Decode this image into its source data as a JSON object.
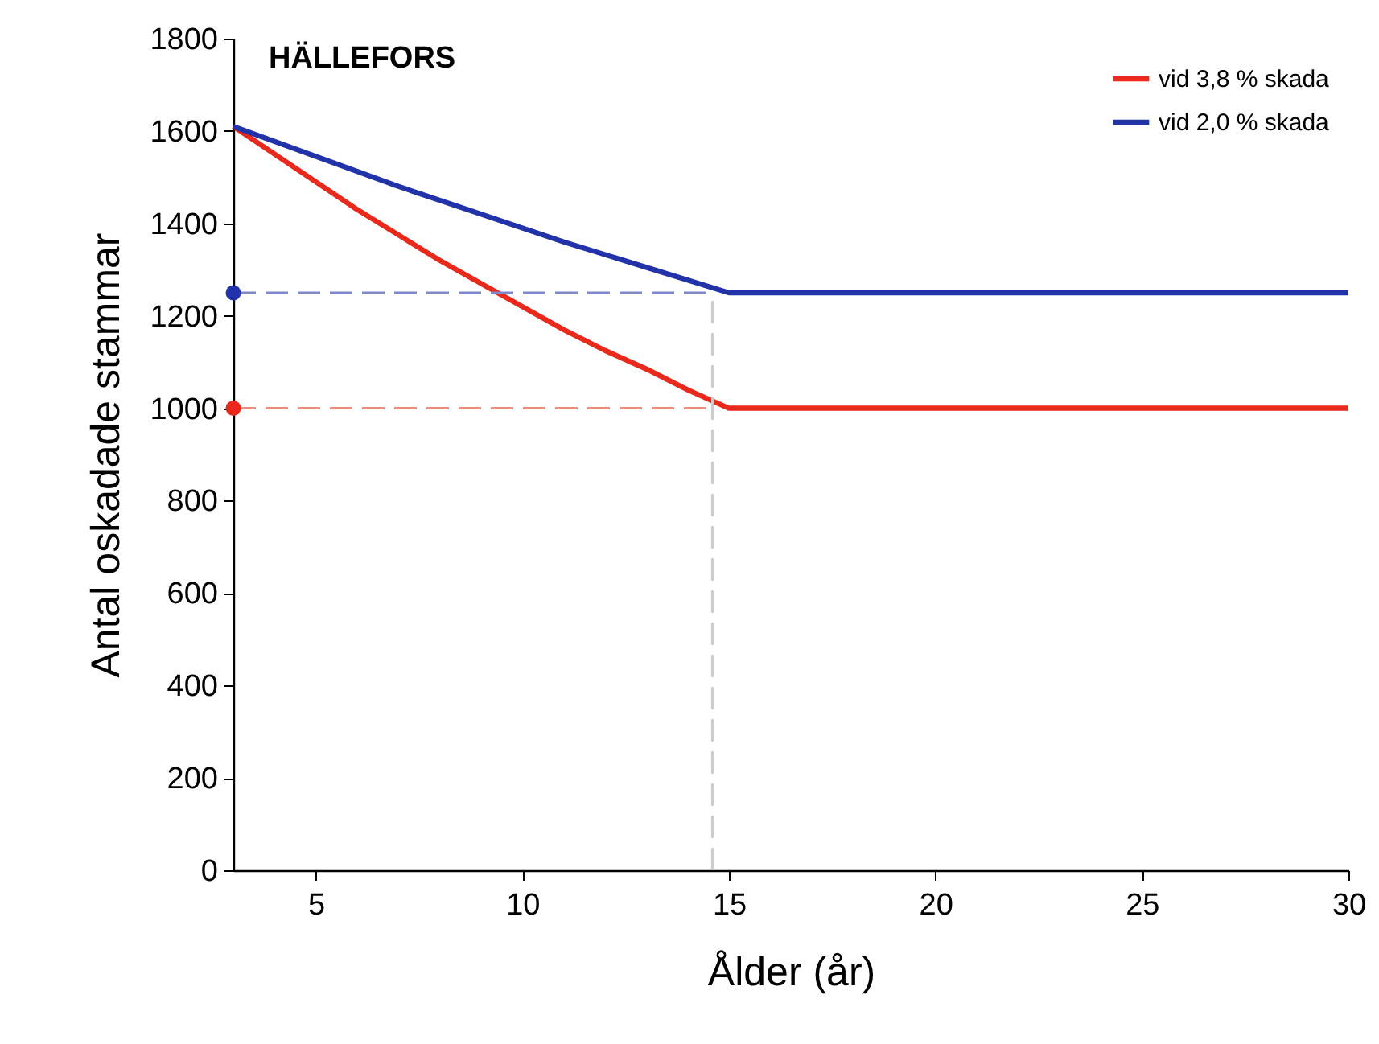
{
  "chart_data": {
    "type": "line",
    "title": "HÄLLEFORS",
    "xlabel": "Ålder (år)",
    "ylabel": "Antal oskadade stammar",
    "xlim": [
      3,
      30
    ],
    "ylim": [
      0,
      1800
    ],
    "xticks": [
      5,
      10,
      15,
      20,
      25,
      30
    ],
    "yticks": [
      0,
      200,
      400,
      600,
      800,
      1000,
      1200,
      1400,
      1600,
      1800
    ],
    "grid": false,
    "legend": "top right",
    "series": [
      {
        "name": "vid 3,8 % skada",
        "color": "#e8291c",
        "x": [
          3,
          4,
          5,
          6,
          7,
          8,
          9,
          10,
          11,
          12,
          13,
          14,
          15,
          30
        ],
        "values": [
          1610,
          1550,
          1490,
          1430,
          1375,
          1320,
          1270,
          1220,
          1170,
          1125,
          1085,
          1040,
          1000,
          1000
        ]
      },
      {
        "name": "vid 2,0 % skada",
        "color": "#2233aa",
        "x": [
          3,
          5,
          7,
          9,
          11,
          13,
          15,
          30
        ],
        "values": [
          1610,
          1545,
          1480,
          1420,
          1360,
          1305,
          1250,
          1250
        ]
      },
      {
        "type": "line",
        "color": "#f08a80",
        "line_style": "dashed",
        "x": [
          3,
          14.6
        ],
        "values": [
          1000,
          1000
        ]
      },
      {
        "type": "line",
        "color": "#8088cc",
        "line_style": "dashed",
        "x": [
          3,
          14.6
        ],
        "values": [
          1250,
          1250
        ]
      },
      {
        "type": "line",
        "color": "#cccccc",
        "line_style": "dashed",
        "x": [
          14.6,
          14.6
        ],
        "values": [
          0,
          1250
        ]
      },
      {
        "type": "scatter",
        "color": "#e8291c",
        "marker": "circle",
        "x": [
          3
        ],
        "values": [
          1000
        ]
      },
      {
        "type": "scatter",
        "color": "#2233aa",
        "marker": "circle",
        "x": [
          3
        ],
        "values": [
          1250
        ]
      }
    ]
  }
}
